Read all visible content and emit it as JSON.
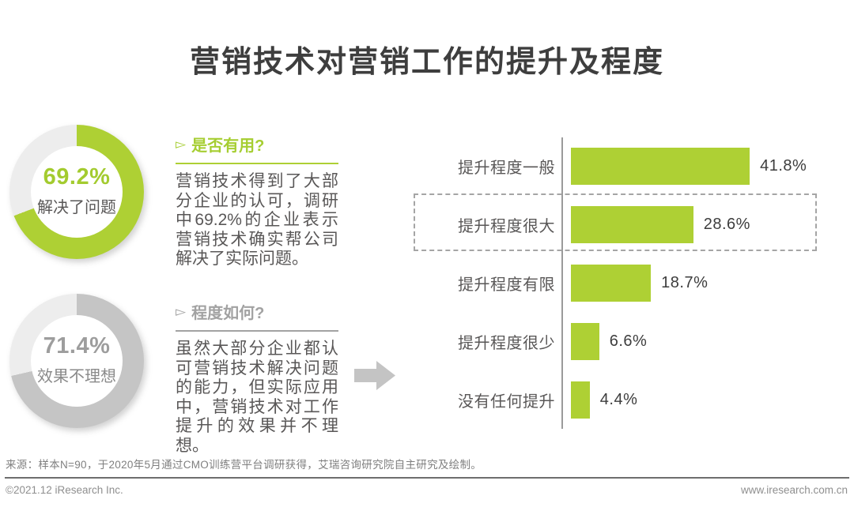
{
  "title": "营销技术对营销工作的提升及程度",
  "colors": {
    "green": "#aed034",
    "gray_ring": "#c5c5c5",
    "ring_track": "#ededed",
    "dark_text": "#595757",
    "arrow_gray": "#c4c4c4"
  },
  "donuts": [
    {
      "value_label": "69.2%",
      "pct": 69.2,
      "caption": "解决了问题",
      "ring_color": "#aed034"
    },
    {
      "value_label": "71.4%",
      "pct": 71.4,
      "caption": "效果不理想",
      "ring_color": "#c5c5c5"
    }
  ],
  "sections": [
    {
      "bullet": "▻",
      "heading": "是否有用?",
      "body": "营销技术得到了大部分企业的认可，调研中69.2%的企业表示营销技术确实帮公司解决了实际问题。"
    },
    {
      "bullet": "▻",
      "heading": "程度如何?",
      "body": "虽然大部分企业都认可营销技术解决问题的能力，但实际应用中，营销技术对工作提升的效果并不理想。"
    }
  ],
  "chart_data": {
    "type": "bar",
    "orientation": "horizontal",
    "categories": [
      "提升程度一般",
      "提升程度很大",
      "提升程度有限",
      "提升程度很少",
      "没有任何提升"
    ],
    "values": [
      41.8,
      28.6,
      18.7,
      6.6,
      4.4
    ],
    "value_labels": [
      "41.8%",
      "28.6%",
      "18.7%",
      "6.6%",
      "4.4%"
    ],
    "unit": "%",
    "bar_color": "#aed034",
    "highlight_index": 1,
    "xlim": [
      0,
      45
    ],
    "grid": false,
    "legend": null
  },
  "source_note": "来源：样本N=90，于2020年5月通过CMO训练营平台调研获得，艾瑞咨询研究院自主研究及绘制。",
  "footer": {
    "copyright": "©2021.12 iResearch Inc.",
    "website": "www.iresearch.com.cn"
  }
}
